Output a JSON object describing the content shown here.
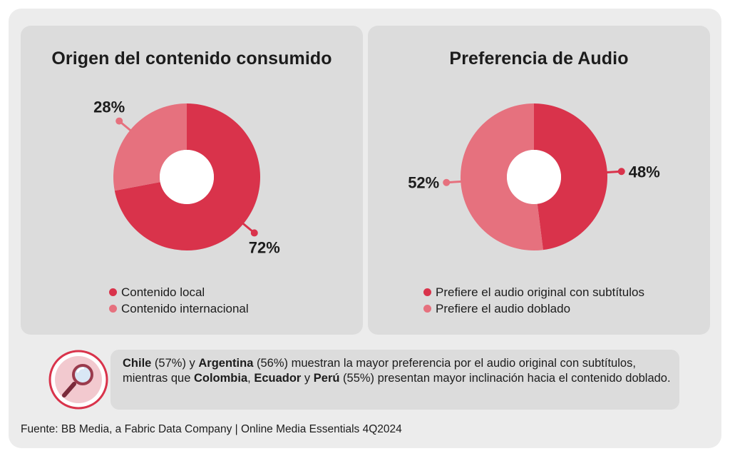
{
  "colors": {
    "primary": "#d9334b",
    "secondary": "#e6717e",
    "panel": "#dcdcdc",
    "background": "#ececec"
  },
  "chart_data": [
    {
      "type": "pie",
      "title": "Origen del contenido consumido",
      "series": [
        {
          "name": "Contenido local",
          "value": 72,
          "label": "72%",
          "color": "#d9334b"
        },
        {
          "name": "Contenido internacional",
          "value": 28,
          "label": "28%",
          "color": "#e6717e"
        }
      ],
      "legend": "bottom"
    },
    {
      "type": "pie",
      "title": "Preferencia de Audio",
      "series": [
        {
          "name": "Prefiere el audio original con subtítulos",
          "value": 48,
          "label": "48%",
          "color": "#d9334b"
        },
        {
          "name": "Prefiere el audio doblado",
          "value": 52,
          "label": "52%",
          "color": "#e6717e"
        }
      ],
      "legend": "bottom"
    }
  ],
  "note": {
    "icon": "magnifier-icon",
    "parts": [
      {
        "text": "Chile",
        "bold": true
      },
      {
        "text": " (57%) y ",
        "bold": false
      },
      {
        "text": "Argentina",
        "bold": true
      },
      {
        "text": " (56%) muestran la mayor preferencia por el audio original con subtítulos, mientras que ",
        "bold": false
      },
      {
        "text": "Colombia",
        "bold": true
      },
      {
        "text": ", ",
        "bold": false
      },
      {
        "text": "Ecuador",
        "bold": true
      },
      {
        "text": " y ",
        "bold": false
      },
      {
        "text": "Perú",
        "bold": true
      },
      {
        "text": " (55%) presentan mayor inclinación hacia el contenido doblado.",
        "bold": false
      }
    ]
  },
  "source": "Fuente: BB Media, a Fabric Data Company | Online Media Essentials 4Q2024"
}
